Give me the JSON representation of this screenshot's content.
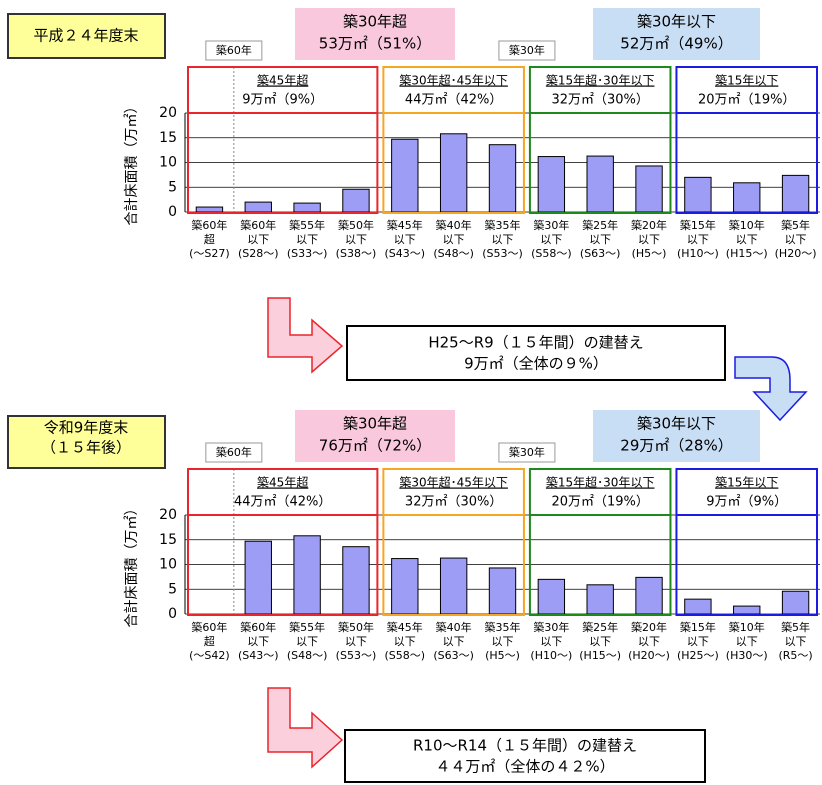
{
  "chart_data": [
    {
      "type": "bar",
      "period": [
        "平成２４年度末"
      ],
      "ylabel": "合計床面積（万㎡）",
      "headers": [
        {
          "title": "築30年超",
          "value": "53万㎡（51%）",
          "color": "#f9c8dc"
        },
        {
          "title": "築30年以下",
          "value": "52万㎡（49%）",
          "color": "#c8def5"
        }
      ],
      "tags": [
        "築60年",
        "築30年"
      ],
      "groups": [
        {
          "name": "築45年超",
          "value": "9万㎡（9%）",
          "color": "#e8262b"
        },
        {
          "name": "築30年超･45年以下",
          "value": "44万㎡（42%）",
          "color": "#f5a623"
        },
        {
          "name": "築15年超･30年以下",
          "value": "32万㎡（30%）",
          "color": "#1e8a1e"
        },
        {
          "name": "築15年以下",
          "value": "20万㎡（19%）",
          "color": "#1c1ce0"
        }
      ],
      "categories": [
        [
          "築60年",
          "超",
          "(～S27)"
        ],
        [
          "築60年",
          "以下",
          "(S28～)"
        ],
        [
          "築55年",
          "以下",
          "(S33～)"
        ],
        [
          "築50年",
          "以下",
          "(S38～)"
        ],
        [
          "築45年",
          "以下",
          "(S43～)"
        ],
        [
          "築40年",
          "以下",
          "(S48～)"
        ],
        [
          "築35年",
          "以下",
          "(S53～)"
        ],
        [
          "築30年",
          "以下",
          "(S58～)"
        ],
        [
          "築25年",
          "以下",
          "(S63～)"
        ],
        [
          "築20年",
          "以下",
          "(H5～)"
        ],
        [
          "築15年",
          "以下",
          "(H10～)"
        ],
        [
          "築10年",
          "以下",
          "(H15～)"
        ],
        [
          "築5年",
          "以下",
          "(H20～)"
        ]
      ],
      "values": [
        1,
        2,
        1.8,
        4.6,
        14.7,
        15.8,
        13.6,
        11.2,
        11.3,
        9.3,
        7,
        5.9,
        7.4
      ],
      "color": "#9d9df5",
      "ylim": [
        0,
        20
      ],
      "yticks": [
        0,
        5,
        10,
        15,
        20
      ],
      "grid": true
    },
    {
      "type": "bar",
      "period": [
        "令和9年度末",
        "（１５年後）"
      ],
      "ylabel": "合計床面積（万㎡）",
      "headers": [
        {
          "title": "築30年超",
          "value": "76万㎡（72%）",
          "color": "#f9c8dc"
        },
        {
          "title": "築30年以下",
          "value": "29万㎡（28%）",
          "color": "#c8def5"
        }
      ],
      "tags": [
        "築60年",
        "築30年"
      ],
      "groups": [
        {
          "name": "築45年超",
          "value": "44万㎡（42%）",
          "color": "#e8262b"
        },
        {
          "name": "築30年超･45年以下",
          "value": "32万㎡（30%）",
          "color": "#f5a623"
        },
        {
          "name": "築15年超･30年以下",
          "value": "20万㎡（19%）",
          "color": "#1e8a1e"
        },
        {
          "name": "築15年以下",
          "value": "9万㎡（9%）",
          "color": "#1c1ce0"
        }
      ],
      "categories": [
        [
          "築60年",
          "超",
          "(～S42)"
        ],
        [
          "築60年",
          "以下",
          "(S43～)"
        ],
        [
          "築55年",
          "以下",
          "(S48～)"
        ],
        [
          "築50年",
          "以下",
          "(S53～)"
        ],
        [
          "築45年",
          "以下",
          "(S58～)"
        ],
        [
          "築40年",
          "以下",
          "(S63～)"
        ],
        [
          "築35年",
          "以下",
          "(H5～)"
        ],
        [
          "築30年",
          "以下",
          "(H10～)"
        ],
        [
          "築25年",
          "以下",
          "(H15～)"
        ],
        [
          "築20年",
          "以下",
          "(H20～)"
        ],
        [
          "築15年",
          "以下",
          "(H25～)"
        ],
        [
          "築10年",
          "以下",
          "(H30～)"
        ],
        [
          "築5年",
          "以下",
          "(R5～)"
        ]
      ],
      "values": [
        0,
        14.7,
        15.8,
        13.6,
        11.2,
        11.3,
        9.3,
        7,
        5.9,
        7.4,
        3,
        1.6,
        4.6
      ],
      "color": "#9d9df5",
      "ylim": [
        0,
        20
      ],
      "yticks": [
        0,
        5,
        10,
        15,
        20
      ],
      "grid": true
    }
  ],
  "transitions": [
    {
      "lines": [
        "H25～R9（１５年間）の建替え",
        "9万㎡（全体の９%）"
      ]
    },
    {
      "lines": [
        "R10～R14（１５年間）の建替え",
        "４４万㎡（全体の４２%）"
      ]
    }
  ]
}
